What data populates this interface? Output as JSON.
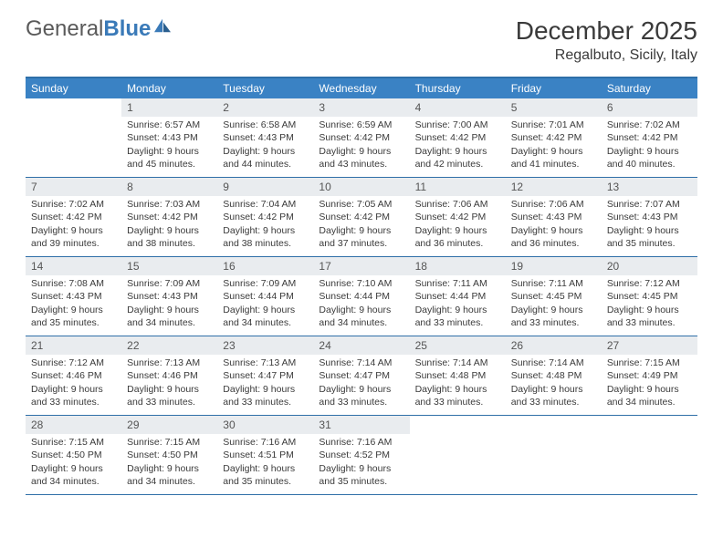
{
  "brand": {
    "text_a": "General",
    "text_b": "Blue"
  },
  "title": "December 2025",
  "location": "Regalbuto, Sicily, Italy",
  "colors": {
    "header_bar": "#3a82c4",
    "rule": "#2f6fa8",
    "daynum_bg": "#e9ecef",
    "text": "#3a3a3a",
    "page_bg": "#ffffff",
    "logo_blue": "#3a7ab8"
  },
  "day_names": [
    "Sunday",
    "Monday",
    "Tuesday",
    "Wednesday",
    "Thursday",
    "Friday",
    "Saturday"
  ],
  "weeks": [
    [
      {
        "n": "",
        "sunrise": "",
        "sunset": "",
        "daylight": ""
      },
      {
        "n": "1",
        "sunrise": "Sunrise: 6:57 AM",
        "sunset": "Sunset: 4:43 PM",
        "daylight": "Daylight: 9 hours and 45 minutes."
      },
      {
        "n": "2",
        "sunrise": "Sunrise: 6:58 AM",
        "sunset": "Sunset: 4:43 PM",
        "daylight": "Daylight: 9 hours and 44 minutes."
      },
      {
        "n": "3",
        "sunrise": "Sunrise: 6:59 AM",
        "sunset": "Sunset: 4:42 PM",
        "daylight": "Daylight: 9 hours and 43 minutes."
      },
      {
        "n": "4",
        "sunrise": "Sunrise: 7:00 AM",
        "sunset": "Sunset: 4:42 PM",
        "daylight": "Daylight: 9 hours and 42 minutes."
      },
      {
        "n": "5",
        "sunrise": "Sunrise: 7:01 AM",
        "sunset": "Sunset: 4:42 PM",
        "daylight": "Daylight: 9 hours and 41 minutes."
      },
      {
        "n": "6",
        "sunrise": "Sunrise: 7:02 AM",
        "sunset": "Sunset: 4:42 PM",
        "daylight": "Daylight: 9 hours and 40 minutes."
      }
    ],
    [
      {
        "n": "7",
        "sunrise": "Sunrise: 7:02 AM",
        "sunset": "Sunset: 4:42 PM",
        "daylight": "Daylight: 9 hours and 39 minutes."
      },
      {
        "n": "8",
        "sunrise": "Sunrise: 7:03 AM",
        "sunset": "Sunset: 4:42 PM",
        "daylight": "Daylight: 9 hours and 38 minutes."
      },
      {
        "n": "9",
        "sunrise": "Sunrise: 7:04 AM",
        "sunset": "Sunset: 4:42 PM",
        "daylight": "Daylight: 9 hours and 38 minutes."
      },
      {
        "n": "10",
        "sunrise": "Sunrise: 7:05 AM",
        "sunset": "Sunset: 4:42 PM",
        "daylight": "Daylight: 9 hours and 37 minutes."
      },
      {
        "n": "11",
        "sunrise": "Sunrise: 7:06 AM",
        "sunset": "Sunset: 4:42 PM",
        "daylight": "Daylight: 9 hours and 36 minutes."
      },
      {
        "n": "12",
        "sunrise": "Sunrise: 7:06 AM",
        "sunset": "Sunset: 4:43 PM",
        "daylight": "Daylight: 9 hours and 36 minutes."
      },
      {
        "n": "13",
        "sunrise": "Sunrise: 7:07 AM",
        "sunset": "Sunset: 4:43 PM",
        "daylight": "Daylight: 9 hours and 35 minutes."
      }
    ],
    [
      {
        "n": "14",
        "sunrise": "Sunrise: 7:08 AM",
        "sunset": "Sunset: 4:43 PM",
        "daylight": "Daylight: 9 hours and 35 minutes."
      },
      {
        "n": "15",
        "sunrise": "Sunrise: 7:09 AM",
        "sunset": "Sunset: 4:43 PM",
        "daylight": "Daylight: 9 hours and 34 minutes."
      },
      {
        "n": "16",
        "sunrise": "Sunrise: 7:09 AM",
        "sunset": "Sunset: 4:44 PM",
        "daylight": "Daylight: 9 hours and 34 minutes."
      },
      {
        "n": "17",
        "sunrise": "Sunrise: 7:10 AM",
        "sunset": "Sunset: 4:44 PM",
        "daylight": "Daylight: 9 hours and 34 minutes."
      },
      {
        "n": "18",
        "sunrise": "Sunrise: 7:11 AM",
        "sunset": "Sunset: 4:44 PM",
        "daylight": "Daylight: 9 hours and 33 minutes."
      },
      {
        "n": "19",
        "sunrise": "Sunrise: 7:11 AM",
        "sunset": "Sunset: 4:45 PM",
        "daylight": "Daylight: 9 hours and 33 minutes."
      },
      {
        "n": "20",
        "sunrise": "Sunrise: 7:12 AM",
        "sunset": "Sunset: 4:45 PM",
        "daylight": "Daylight: 9 hours and 33 minutes."
      }
    ],
    [
      {
        "n": "21",
        "sunrise": "Sunrise: 7:12 AM",
        "sunset": "Sunset: 4:46 PM",
        "daylight": "Daylight: 9 hours and 33 minutes."
      },
      {
        "n": "22",
        "sunrise": "Sunrise: 7:13 AM",
        "sunset": "Sunset: 4:46 PM",
        "daylight": "Daylight: 9 hours and 33 minutes."
      },
      {
        "n": "23",
        "sunrise": "Sunrise: 7:13 AM",
        "sunset": "Sunset: 4:47 PM",
        "daylight": "Daylight: 9 hours and 33 minutes."
      },
      {
        "n": "24",
        "sunrise": "Sunrise: 7:14 AM",
        "sunset": "Sunset: 4:47 PM",
        "daylight": "Daylight: 9 hours and 33 minutes."
      },
      {
        "n": "25",
        "sunrise": "Sunrise: 7:14 AM",
        "sunset": "Sunset: 4:48 PM",
        "daylight": "Daylight: 9 hours and 33 minutes."
      },
      {
        "n": "26",
        "sunrise": "Sunrise: 7:14 AM",
        "sunset": "Sunset: 4:48 PM",
        "daylight": "Daylight: 9 hours and 33 minutes."
      },
      {
        "n": "27",
        "sunrise": "Sunrise: 7:15 AM",
        "sunset": "Sunset: 4:49 PM",
        "daylight": "Daylight: 9 hours and 34 minutes."
      }
    ],
    [
      {
        "n": "28",
        "sunrise": "Sunrise: 7:15 AM",
        "sunset": "Sunset: 4:50 PM",
        "daylight": "Daylight: 9 hours and 34 minutes."
      },
      {
        "n": "29",
        "sunrise": "Sunrise: 7:15 AM",
        "sunset": "Sunset: 4:50 PM",
        "daylight": "Daylight: 9 hours and 34 minutes."
      },
      {
        "n": "30",
        "sunrise": "Sunrise: 7:16 AM",
        "sunset": "Sunset: 4:51 PM",
        "daylight": "Daylight: 9 hours and 35 minutes."
      },
      {
        "n": "31",
        "sunrise": "Sunrise: 7:16 AM",
        "sunset": "Sunset: 4:52 PM",
        "daylight": "Daylight: 9 hours and 35 minutes."
      },
      {
        "n": "",
        "sunrise": "",
        "sunset": "",
        "daylight": ""
      },
      {
        "n": "",
        "sunrise": "",
        "sunset": "",
        "daylight": ""
      },
      {
        "n": "",
        "sunrise": "",
        "sunset": "",
        "daylight": ""
      }
    ]
  ]
}
